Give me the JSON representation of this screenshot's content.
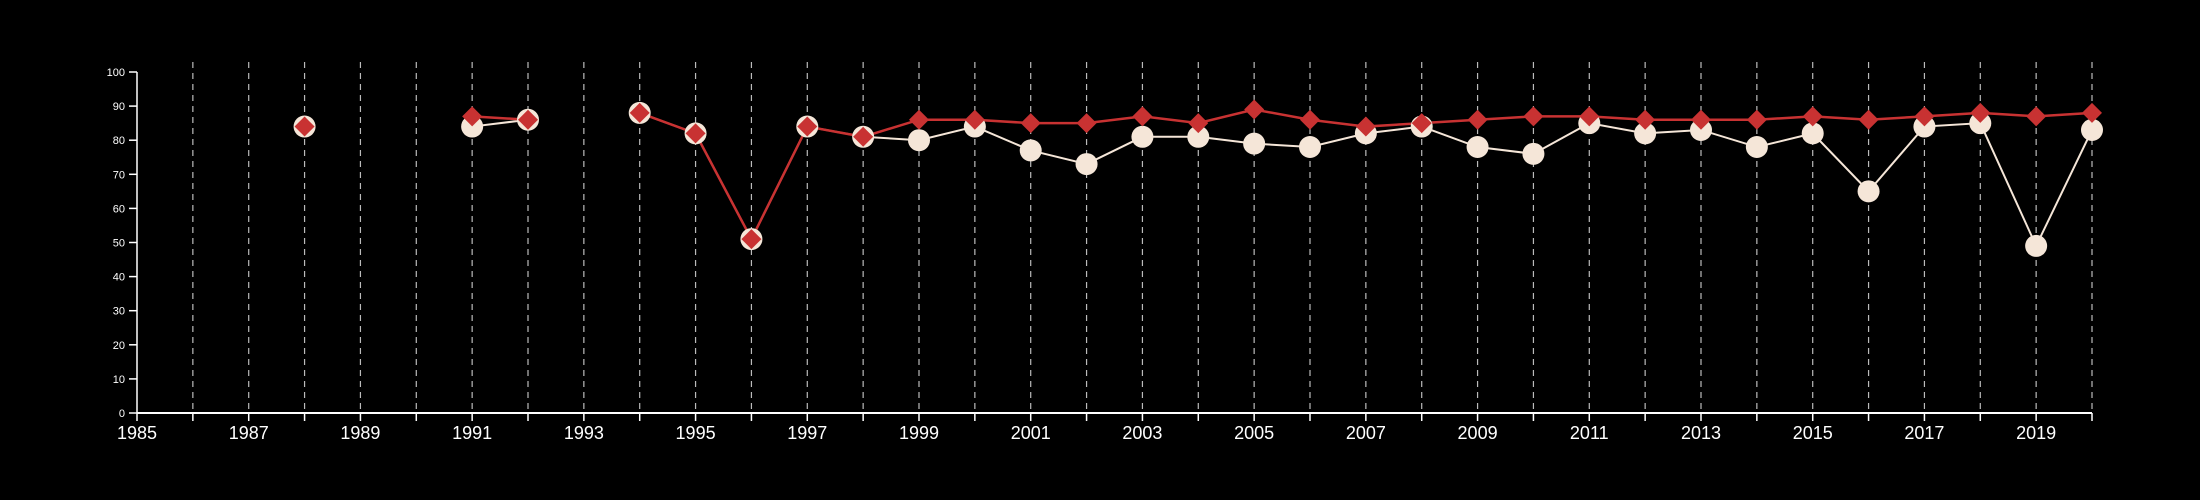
{
  "chart_data": {
    "type": "line",
    "title": "",
    "xlabel": "",
    "ylabel": "",
    "xlim": [
      1985,
      2020
    ],
    "ylim": [
      0,
      100
    ],
    "x_ticks": [
      "1985",
      "1987",
      "1989",
      "1991",
      "1993",
      "1995",
      "1997",
      "1999",
      "2001",
      "2003",
      "2005",
      "2007",
      "2009",
      "2011",
      "2013",
      "2015",
      "2017",
      "2019"
    ],
    "y_ticks": [
      "0",
      "10",
      "20",
      "30",
      "40",
      "50",
      "60",
      "70",
      "80",
      "90",
      "100"
    ],
    "grid": "vertical dashed at each year",
    "colors": {
      "background": "#000000",
      "axis": "#ffffff",
      "grid": "#bbbbbb",
      "series_circle": "#f5e6d8",
      "series_diamond": "#c83232"
    },
    "series": [
      {
        "marker": "circle",
        "points": [
          [
            1988,
            84
          ],
          [
            1991,
            84
          ],
          [
            1992,
            86
          ],
          [
            1994,
            88
          ],
          [
            1995,
            82
          ],
          [
            1996,
            51
          ],
          [
            1997,
            84
          ],
          [
            1998,
            81
          ],
          [
            1999,
            80
          ],
          [
            2000,
            84
          ],
          [
            2001,
            77
          ],
          [
            2002,
            73
          ],
          [
            2003,
            81
          ],
          [
            2004,
            81
          ],
          [
            2005,
            79
          ],
          [
            2006,
            78
          ],
          [
            2007,
            82
          ],
          [
            2008,
            84
          ],
          [
            2009,
            78
          ],
          [
            2010,
            76
          ],
          [
            2011,
            85
          ],
          [
            2012,
            82
          ],
          [
            2013,
            83
          ],
          [
            2014,
            78
          ],
          [
            2015,
            82
          ],
          [
            2016,
            65
          ],
          [
            2017,
            84
          ],
          [
            2018,
            85
          ],
          [
            2019,
            49
          ],
          [
            2020,
            83
          ]
        ]
      },
      {
        "marker": "diamond",
        "points": [
          [
            1988,
            84
          ],
          [
            1991,
            87
          ],
          [
            1992,
            86
          ],
          [
            1994,
            88
          ],
          [
            1995,
            82
          ],
          [
            1996,
            51
          ],
          [
            1997,
            84
          ],
          [
            1998,
            81
          ],
          [
            1999,
            86
          ],
          [
            2000,
            86
          ],
          [
            2001,
            85
          ],
          [
            2002,
            85
          ],
          [
            2003,
            87
          ],
          [
            2004,
            85
          ],
          [
            2005,
            89
          ],
          [
            2006,
            86
          ],
          [
            2007,
            84
          ],
          [
            2008,
            85
          ],
          [
            2009,
            86
          ],
          [
            2010,
            87
          ],
          [
            2011,
            87
          ],
          [
            2012,
            86
          ],
          [
            2013,
            86
          ],
          [
            2014,
            86
          ],
          [
            2015,
            87
          ],
          [
            2016,
            86
          ],
          [
            2017,
            87
          ],
          [
            2018,
            88
          ],
          [
            2019,
            87
          ],
          [
            2020,
            88
          ]
        ]
      }
    ]
  }
}
